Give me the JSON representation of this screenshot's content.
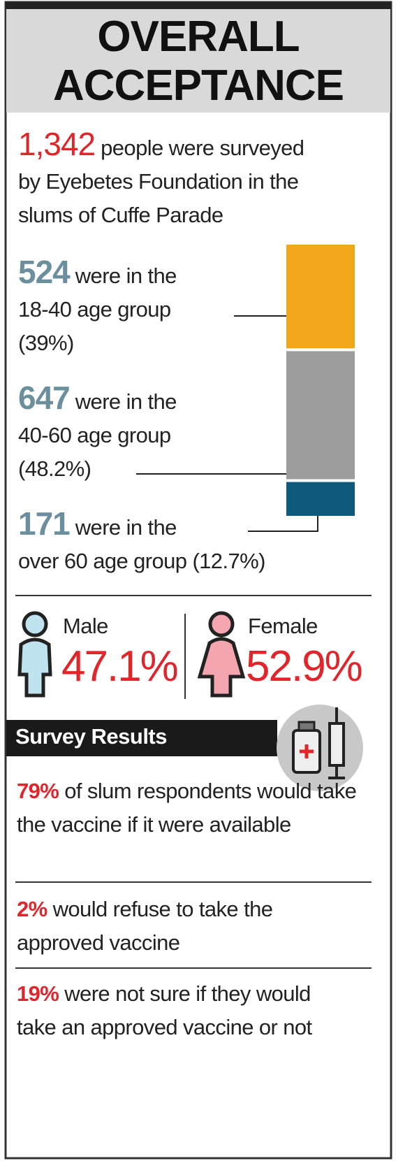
{
  "header": {
    "title_lines": [
      "OVERALL",
      "ACCEPTANCE"
    ]
  },
  "intro": {
    "number": "1,342",
    "text_lines": [
      "people were surveyed",
      "by Eyebetes Foundation in the",
      "slums of Cuffe Parade"
    ]
  },
  "age_groups": [
    {
      "count": 524,
      "lines": [
        "were in the",
        "18-40 age group",
        "(39%)"
      ],
      "color": "#f2a71b"
    },
    {
      "count": 647,
      "lines": [
        "were in the",
        "40-60 age group",
        "(48.2%)"
      ],
      "color": "#9d9d9d"
    },
    {
      "count": 171,
      "lines": [
        "were in the",
        "over 60 age group (12.7%)"
      ],
      "color": "#0f5a7c"
    }
  ],
  "gender": [
    {
      "label": "Male",
      "value": "47.1%",
      "color": "#bfe3ef"
    },
    {
      "label": "Female",
      "value": "52.9%",
      "color": "#f4a6b0"
    }
  ],
  "survey": {
    "title": "Survey Results",
    "items": [
      {
        "highlight": "79%",
        "text": "of slum respondents would take the vaccine if it were available"
      },
      {
        "highlight": "2%",
        "text": "would refuse to take the approved vaccine"
      },
      {
        "highlight": "19%",
        "text": "were not sure if they would take an approved vaccine or not"
      }
    ]
  }
}
